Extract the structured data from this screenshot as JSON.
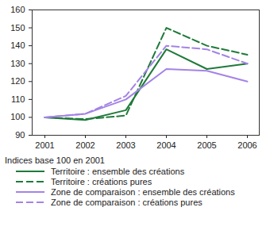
{
  "chart_data": {
    "type": "line",
    "ylabel": "Indices base 100 en 2001",
    "categories": [
      "2001",
      "2002",
      "2003",
      "2004",
      "2005",
      "2006"
    ],
    "series": [
      {
        "name": "Territoire : ensemble des créations",
        "color": "#1f7a3a",
        "line_style": "solid",
        "values": [
          100,
          98.5,
          104,
          138,
          127,
          130
        ]
      },
      {
        "name": "Territoire : créations pures",
        "color": "#1f7a3a",
        "line_style": "dashed",
        "values": [
          100,
          99,
          101,
          150,
          140,
          135
        ]
      },
      {
        "name": "Zone de comparaison : ensemble des créations",
        "color": "#a483e6",
        "line_style": "solid",
        "values": [
          100,
          102,
          110,
          127,
          126,
          120
        ]
      },
      {
        "name": "Zone de comparaison : créations pures",
        "color": "#a483e6",
        "line_style": "dashed",
        "values": [
          100,
          102,
          112,
          140,
          138,
          130
        ]
      }
    ],
    "ylim": [
      90,
      160
    ],
    "yticks": [
      90,
      100,
      110,
      120,
      130,
      140,
      150,
      160
    ],
    "grid": false,
    "legend": "bottom"
  }
}
